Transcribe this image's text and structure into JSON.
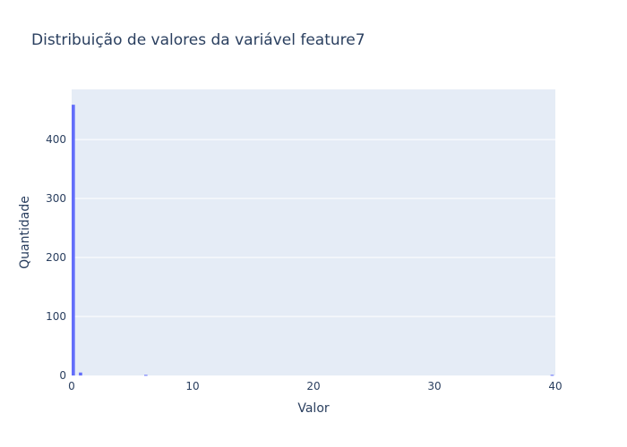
{
  "chart_data": {
    "type": "bar",
    "title": "Distribuição de valores da variável feature7",
    "xlabel": "Valor",
    "ylabel": "Quantidade",
    "xlim": [
      0,
      40
    ],
    "ylim": [
      0,
      485
    ],
    "xticks": [
      0,
      10,
      20,
      30,
      40
    ],
    "yticks": [
      0,
      100,
      200,
      300,
      400
    ],
    "grid": true,
    "colors": {
      "bar": "#636efa",
      "plot_bg": "#e5ecf6",
      "grid": "#ffffff",
      "text": "#2a3f5f"
    },
    "bins": [
      {
        "x0": 0.0,
        "x1": 0.3,
        "count": 459
      },
      {
        "x0": 0.3,
        "x1": 0.6,
        "count": 0
      },
      {
        "x0": 0.6,
        "x1": 0.9,
        "count": 5
      },
      {
        "x0": 6.0,
        "x1": 6.3,
        "count": 1
      },
      {
        "x0": 39.6,
        "x1": 39.9,
        "count": 1
      }
    ]
  }
}
